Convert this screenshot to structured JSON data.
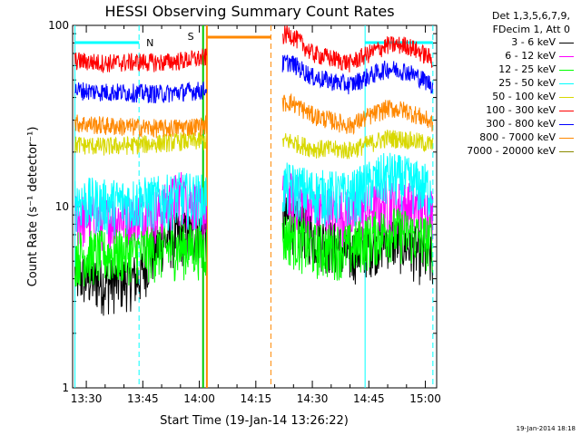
{
  "chart_data": {
    "type": "line",
    "title": "HESSI Observing Summary Count Rates",
    "xlabel": "Start Time (19-Jan-14 13:26:22)",
    "ylabel": "Count Rate (s⁻¹ detector⁻¹)",
    "y_scale": "log",
    "ylim": [
      1,
      100
    ],
    "xlim": [
      "13:26:22",
      "15:03:00"
    ],
    "x_tick_labels": [
      "13:30",
      "13:45",
      "14:00",
      "14:15",
      "14:30",
      "14:45",
      "15:00"
    ],
    "y_tick_labels": [
      "1",
      "10",
      "100"
    ],
    "grid": false,
    "legend_position": "right",
    "legend_header": [
      "Det 1,3,5,6,7,9,",
      "FDecim 1, Att 0"
    ],
    "series": [
      {
        "name": "3 - 6 keV",
        "color": "#000000",
        "x": [
          "13:27",
          "13:35",
          "13:44",
          "13:50",
          "13:55",
          "14:01",
          "14:24",
          "14:30",
          "14:40",
          "14:50",
          "14:55",
          "15:02"
        ],
        "y": [
          4.2,
          3.8,
          4.1,
          6.5,
          7.0,
          7.2,
          8.5,
          7.0,
          5.5,
          6.8,
          6.2,
          5.0
        ]
      },
      {
        "name": "6 - 12 keV",
        "color": "#ff00ff",
        "x": [
          "13:27",
          "13:35",
          "13:44",
          "13:50",
          "13:55",
          "14:01",
          "14:24",
          "14:30",
          "14:40",
          "14:50",
          "14:55",
          "15:02"
        ],
        "y": [
          8.8,
          8.5,
          9.0,
          9.5,
          12.0,
          9.5,
          11.5,
          10.0,
          9.0,
          10.5,
          10.2,
          9.5
        ]
      },
      {
        "name": "12 - 25 keV",
        "color": "#00ff00",
        "x": [
          "13:27",
          "13:35",
          "13:44",
          "13:50",
          "13:55",
          "14:01",
          "14:24",
          "14:30",
          "14:40",
          "14:50",
          "14:55",
          "15:02"
        ],
        "y": [
          5.5,
          5.5,
          5.7,
          5.8,
          6.0,
          6.0,
          7.0,
          6.0,
          6.0,
          7.5,
          7.2,
          6.5
        ]
      },
      {
        "name": "25 - 50 keV",
        "color": "#00ffff",
        "x": [
          "13:27",
          "13:35",
          "13:44",
          "13:50",
          "13:55",
          "14:01",
          "14:24",
          "14:30",
          "14:40",
          "14:50",
          "14:55",
          "15:02"
        ],
        "y": [
          11.0,
          10.5,
          10.8,
          11.0,
          11.5,
          11.2,
          13.0,
          12.0,
          11.5,
          15.0,
          14.0,
          12.5
        ]
      },
      {
        "name": "50 - 100 keV",
        "color": "#d8d800",
        "x": [
          "13:27",
          "13:35",
          "13:44",
          "13:50",
          "13:55",
          "14:01",
          "14:24",
          "14:30",
          "14:40",
          "14:50",
          "14:55",
          "15:02"
        ],
        "y": [
          22.0,
          21.5,
          22.0,
          22.5,
          23.0,
          23.0,
          23.0,
          21.0,
          20.5,
          24.0,
          23.5,
          22.0
        ]
      },
      {
        "name": "100 - 300 keV",
        "color": "#ff0000",
        "x": [
          "13:27",
          "13:35",
          "13:44",
          "13:50",
          "13:55",
          "14:01",
          "14:24",
          "14:30",
          "14:40",
          "14:50",
          "14:55",
          "15:02"
        ],
        "y": [
          64.0,
          62.0,
          63.0,
          62.5,
          64.0,
          66.0,
          90.0,
          70.0,
          62.0,
          78.0,
          78.0,
          65.0
        ]
      },
      {
        "name": "300 - 800 keV",
        "color": "#0000ff",
        "x": [
          "13:27",
          "13:35",
          "13:44",
          "13:50",
          "13:55",
          "14:01",
          "14:24",
          "14:30",
          "14:40",
          "14:50",
          "14:55",
          "15:02"
        ],
        "y": [
          44.0,
          43.0,
          42.5,
          42.0,
          43.0,
          44.0,
          63.0,
          52.0,
          47.0,
          58.0,
          56.0,
          47.0
        ]
      },
      {
        "name": "800 - 7000 keV",
        "color": "#ff8800",
        "x": [
          "13:27",
          "13:35",
          "13:44",
          "13:50",
          "13:55",
          "14:01",
          "14:24",
          "14:30",
          "14:40",
          "14:50",
          "14:55",
          "15:02"
        ],
        "y": [
          29.0,
          28.0,
          27.5,
          27.0,
          27.5,
          28.0,
          38.0,
          32.0,
          28.0,
          35.0,
          34.0,
          29.0
        ]
      },
      {
        "name": "7000 - 20000 keV",
        "color": "#8b8b00",
        "x": [],
        "y": []
      }
    ],
    "gap": {
      "start": "14:02",
      "end": "14:22"
    },
    "annotations": [
      {
        "label": "N",
        "color": "#00ffff",
        "type": "night",
        "x": "13:44"
      },
      {
        "label": "S",
        "color": "#ff8800",
        "type": "saa",
        "x": "14:00"
      }
    ],
    "night_bars": [
      {
        "start": "13:27",
        "end": "13:44"
      },
      {
        "start": "14:44",
        "end": "15:02"
      }
    ],
    "saa_bar": {
      "start": "14:02",
      "end": "14:19"
    },
    "vlines_cyan_dashed": [
      "13:44",
      "15:02"
    ],
    "vlines_cyan_solid": [
      "13:27",
      "14:44"
    ],
    "vlines_orange_dashed": [
      "14:19"
    ],
    "vlines_orange_solid": [
      "14:02"
    ],
    "vlines_green_solid": [
      "14:01"
    ]
  },
  "footer": {
    "date": "19-Jan-2014 18:18"
  }
}
